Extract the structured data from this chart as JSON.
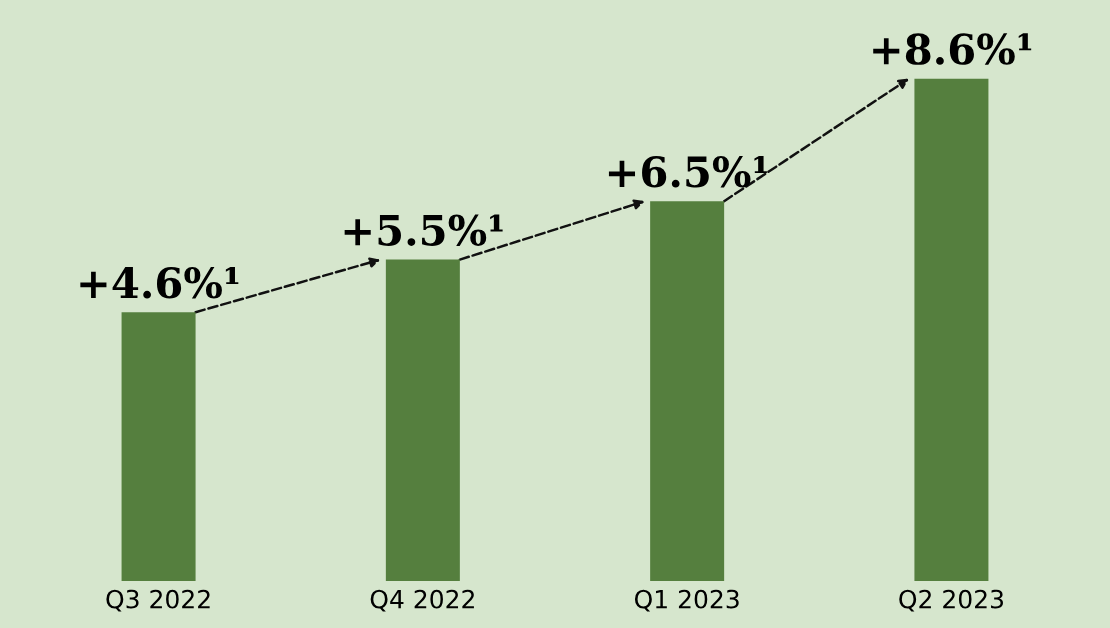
{
  "chart_data": {
    "type": "bar",
    "categories": [
      "Q3 2022",
      "Q4 2022",
      "Q1 2023",
      "Q2 2023"
    ],
    "series": [
      {
        "color": "#557f3e",
        "values": [
          4.6,
          5.5,
          6.5,
          8.6
        ],
        "value_labels": [
          "+4.6%¹",
          "+5.5%¹",
          "+6.5%¹",
          "+8.6%¹"
        ]
      }
    ],
    "tick_labels": "x"
  }
}
